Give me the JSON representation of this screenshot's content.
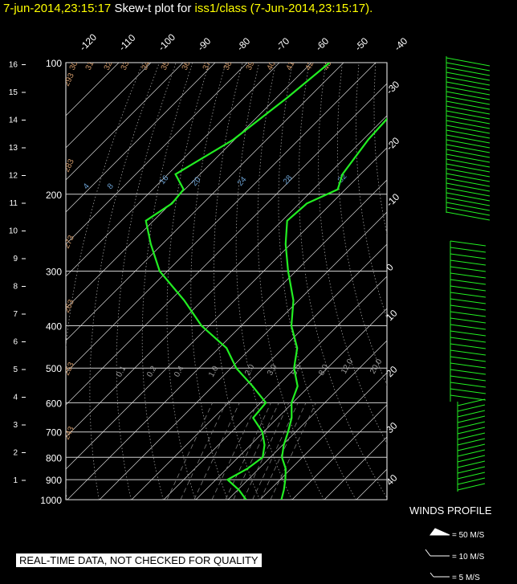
{
  "header": {
    "date": "7-jun-2014,23:15:17",
    "mid": "  Skew-t plot for ",
    "station": "iss1/class (7-Jun-2014,23:15:17)."
  },
  "colors": {
    "temperature": "#22ee22",
    "dewpoint": "#22ee22",
    "axes": "#ffffff",
    "mixing": "#6a9fd0",
    "dry_adiabat": "#d39b6a"
  },
  "chart_data": {
    "type": "line",
    "title": "Skew-t plot for iss1/class (7-Jun-2014,23:15:17).",
    "pressure_levels": [
      100,
      200,
      300,
      400,
      500,
      600,
      700,
      800,
      900,
      1000
    ],
    "height_ticks_km": [
      "1",
      "2",
      "3",
      "4",
      "5",
      "6",
      "7",
      "8",
      "9",
      "10",
      "11",
      "12",
      "13",
      "14",
      "15",
      "16"
    ],
    "isotherm_labels_top": [
      "-120",
      "-110",
      "-100",
      "-90",
      "-80",
      "-70",
      "-60",
      "-50",
      "-40"
    ],
    "isotherm_labels_right": [
      "-30",
      "-20",
      "-10",
      "0",
      "10",
      "20",
      "30",
      "40"
    ],
    "dry_adiabat_labels": [
      "303",
      "313",
      "323",
      "333",
      "343",
      "353",
      "363",
      "373",
      "383",
      "393",
      "403",
      "413",
      "423",
      "433",
      "293",
      "283",
      "273",
      "263",
      "253",
      "243"
    ],
    "mixing_ratio_labels_upper": [
      "4",
      "8",
      "16",
      "20",
      "24",
      "28",
      "32"
    ],
    "mixing_ratio_labels_lower": [
      "0.1",
      "0.2",
      "0.4",
      "1.0",
      "2.0",
      "3.0",
      "5.0",
      "8.0",
      "12.0",
      "20.0"
    ],
    "series": [
      {
        "name": "temperature",
        "points": [
          [
            100,
            -64
          ],
          [
            120,
            -60
          ],
          [
            150,
            -58
          ],
          [
            180,
            -56
          ],
          [
            195,
            -52
          ],
          [
            210,
            -58
          ],
          [
            230,
            -58
          ],
          [
            260,
            -52
          ],
          [
            300,
            -42
          ],
          [
            350,
            -32
          ],
          [
            400,
            -24
          ],
          [
            450,
            -16
          ],
          [
            500,
            -10
          ],
          [
            550,
            -4
          ],
          [
            600,
            0
          ],
          [
            650,
            4
          ],
          [
            700,
            8
          ],
          [
            750,
            10
          ],
          [
            800,
            14
          ],
          [
            850,
            18
          ],
          [
            900,
            22
          ],
          [
            950,
            24
          ],
          [
            1000,
            27
          ]
        ]
      },
      {
        "name": "dewpoint",
        "points": [
          [
            100,
            -94
          ],
          [
            120,
            -97
          ],
          [
            150,
            -100
          ],
          [
            180,
            -108
          ],
          [
            195,
            -100
          ],
          [
            210,
            -100
          ],
          [
            230,
            -102
          ],
          [
            260,
            -94
          ],
          [
            300,
            -82
          ],
          [
            350,
            -66
          ],
          [
            400,
            -52
          ],
          [
            450,
            -38
          ],
          [
            500,
            -28
          ],
          [
            550,
            -18
          ],
          [
            600,
            -8
          ],
          [
            650,
            -8
          ],
          [
            700,
            0
          ],
          [
            750,
            4
          ],
          [
            800,
            8
          ],
          [
            850,
            6
          ],
          [
            900,
            4
          ],
          [
            950,
            10
          ],
          [
            1000,
            16
          ]
        ]
      }
    ]
  },
  "winds": {
    "title": "WINDS PROFILE",
    "legend": [
      "= 50 M/S",
      "= 10 M/S",
      "= 5 M/S"
    ]
  },
  "disclaimer": "REAL-TIME DATA, NOT CHECKED FOR QUALITY"
}
